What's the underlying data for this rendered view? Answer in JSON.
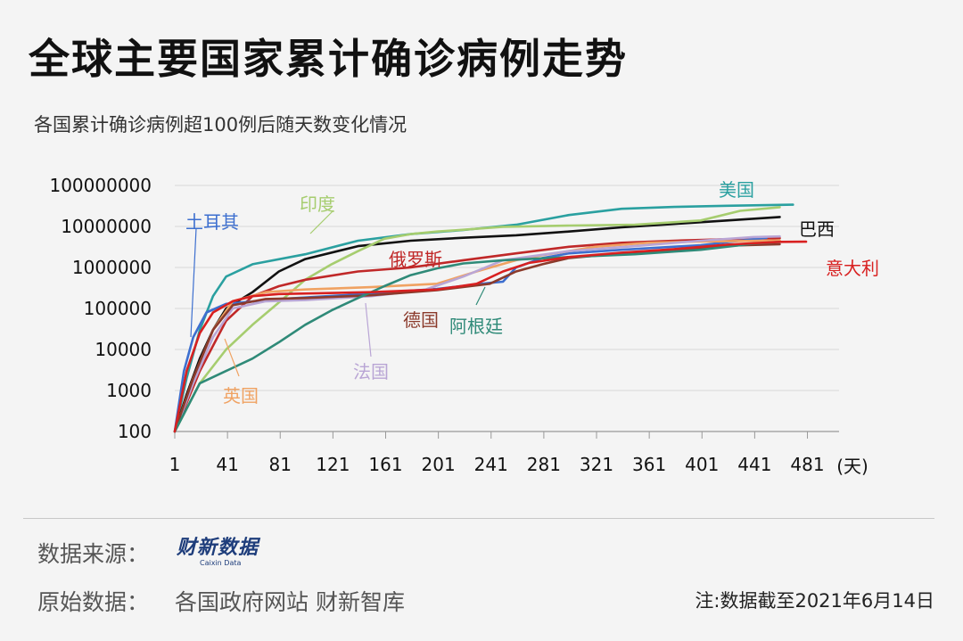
{
  "header": {
    "title": "全球主要国家累计确诊病例走势",
    "subtitle": "各国累计确诊病例超100例后随天数变化情况"
  },
  "footer": {
    "source_label": "数据来源：",
    "source_logo": "财新数据",
    "source_logo_sub": "Caixin Data",
    "raw_label": "原始数据：",
    "raw_value": "各国政府网站 财新智库",
    "note": "注:数据截至2021年6月14日"
  },
  "chart_data": {
    "type": "line",
    "title": "全球主要国家累计确诊病例走势",
    "subtitle": "各国累计确诊病例超100例后随天数变化情况",
    "xlabel": "(天)",
    "ylabel": "",
    "x_ticks": [
      1,
      41,
      81,
      121,
      161,
      201,
      241,
      281,
      321,
      361,
      401,
      441,
      481
    ],
    "y_ticks": [
      100,
      1000,
      10000,
      100000,
      1000000,
      10000000,
      100000000
    ],
    "y_tick_labels": [
      "100",
      "1000",
      "10000",
      "100000",
      "1000000",
      "10000000",
      "100000000"
    ],
    "y_scale": "log",
    "xlim": [
      1,
      505
    ],
    "ylim": [
      100,
      100000000
    ],
    "grid": "horizontal",
    "series": [
      {
        "name": "美国",
        "color": "#2aa0a0",
        "x": [
          1,
          10,
          20,
          30,
          40,
          60,
          100,
          140,
          180,
          220,
          260,
          300,
          340,
          380,
          420,
          460,
          470
        ],
        "y": [
          100,
          2000,
          30000,
          200000,
          600000,
          1200000,
          2100000,
          4500000,
          6500000,
          8200000,
          11000000,
          19000000,
          27000000,
          30000000,
          32000000,
          33500000,
          34000000
        ]
      },
      {
        "name": "巴西",
        "color": "#111111",
        "x": [
          1,
          10,
          20,
          30,
          40,
          60,
          80,
          100,
          140,
          180,
          220,
          260,
          300,
          340,
          380,
          420,
          460
        ],
        "y": [
          100,
          800,
          6000,
          30000,
          100000,
          250000,
          800000,
          1600000,
          3300000,
          4500000,
          5300000,
          6100000,
          7500000,
          9500000,
          11500000,
          14000000,
          17000000
        ]
      },
      {
        "name": "印度",
        "color": "#a6cd6f",
        "x": [
          1,
          20,
          40,
          60,
          80,
          100,
          120,
          140,
          160,
          180,
          200,
          220,
          250,
          300,
          350,
          400,
          430,
          460
        ],
        "y": [
          100,
          1500,
          10000,
          40000,
          140000,
          500000,
          1200000,
          2500000,
          5000000,
          6500000,
          7500000,
          8300000,
          9800000,
          10500000,
          11000000,
          14000000,
          24000000,
          29500000
        ]
      },
      {
        "name": "俄罗斯",
        "color": "#c02828",
        "x": [
          1,
          20,
          40,
          60,
          80,
          100,
          140,
          180,
          220,
          260,
          300,
          340,
          380,
          420,
          460
        ],
        "y": [
          100,
          3000,
          50000,
          200000,
          350000,
          500000,
          800000,
          1000000,
          1500000,
          2200000,
          3200000,
          4000000,
          4500000,
          4900000,
          5200000
        ]
      },
      {
        "name": "土耳其",
        "color": "#3d6fcf",
        "x": [
          1,
          8,
          15,
          25,
          40,
          80,
          140,
          200,
          240,
          250,
          260,
          280,
          300,
          340,
          400,
          450
        ],
        "y": [
          100,
          3000,
          20000,
          80000,
          130000,
          170000,
          220000,
          300000,
          420000,
          450000,
          1000000,
          1700000,
          2200000,
          2700000,
          3500000,
          5300000
        ]
      },
      {
        "name": "英国",
        "color": "#f0a262",
        "x": [
          1,
          15,
          30,
          45,
          70,
          100,
          150,
          200,
          230,
          260,
          280,
          300,
          320,
          360,
          400,
          440,
          460
        ],
        "y": [
          100,
          2000,
          30000,
          150000,
          250000,
          290000,
          330000,
          400000,
          800000,
          1500000,
          2000000,
          2500000,
          3200000,
          4000000,
          4300000,
          4450000,
          4550000
        ]
      },
      {
        "name": "法国",
        "color": "#b9a5d5",
        "x": [
          1,
          15,
          30,
          45,
          70,
          100,
          150,
          190,
          220,
          250,
          300,
          350,
          400,
          440,
          460
        ],
        "y": [
          100,
          1500,
          20000,
          100000,
          150000,
          160000,
          200000,
          280000,
          600000,
          1500000,
          2500000,
          3300000,
          4500000,
          5500000,
          5700000
        ]
      },
      {
        "name": "德国",
        "color": "#8b3a2b",
        "x": [
          1,
          15,
          30,
          45,
          70,
          100,
          150,
          200,
          240,
          260,
          280,
          300,
          340,
          380,
          420,
          460
        ],
        "y": [
          100,
          2000,
          30000,
          120000,
          170000,
          180000,
          210000,
          280000,
          400000,
          800000,
          1200000,
          1700000,
          2200000,
          2600000,
          3400000,
          3700000
        ]
      },
      {
        "name": "阿根廷",
        "color": "#2f8a78",
        "x": [
          1,
          20,
          40,
          60,
          80,
          100,
          120,
          140,
          160,
          180,
          200,
          220,
          250,
          300,
          350,
          400,
          440,
          460
        ],
        "y": [
          100,
          1500,
          3000,
          6000,
          15000,
          40000,
          90000,
          180000,
          350000,
          650000,
          950000,
          1250000,
          1500000,
          1800000,
          2100000,
          2700000,
          3800000,
          4200000
        ]
      },
      {
        "name": "意大利",
        "color": "#d82020",
        "x": [
          1,
          10,
          20,
          30,
          45,
          60,
          80,
          150,
          200,
          230,
          250,
          270,
          300,
          340,
          380,
          420,
          460,
          480
        ],
        "y": [
          100,
          3000,
          25000,
          80000,
          150000,
          200000,
          225000,
          250000,
          290000,
          400000,
          800000,
          1300000,
          1800000,
          2300000,
          2800000,
          3600000,
          4200000,
          4250000
        ]
      }
    ],
    "labels": [
      {
        "text": "美国",
        "series": "美国"
      },
      {
        "text": "巴西",
        "series": "巴西"
      },
      {
        "text": "印度",
        "series": "印度"
      },
      {
        "text": "俄罗斯",
        "series": "俄罗斯"
      },
      {
        "text": "土耳其",
        "series": "土耳其"
      },
      {
        "text": "英国",
        "series": "英国"
      },
      {
        "text": "法国",
        "series": "法国"
      },
      {
        "text": "德国",
        "series": "德国"
      },
      {
        "text": "阿根廷",
        "series": "阿根廷"
      },
      {
        "text": "意大利",
        "series": "意大利"
      }
    ]
  }
}
